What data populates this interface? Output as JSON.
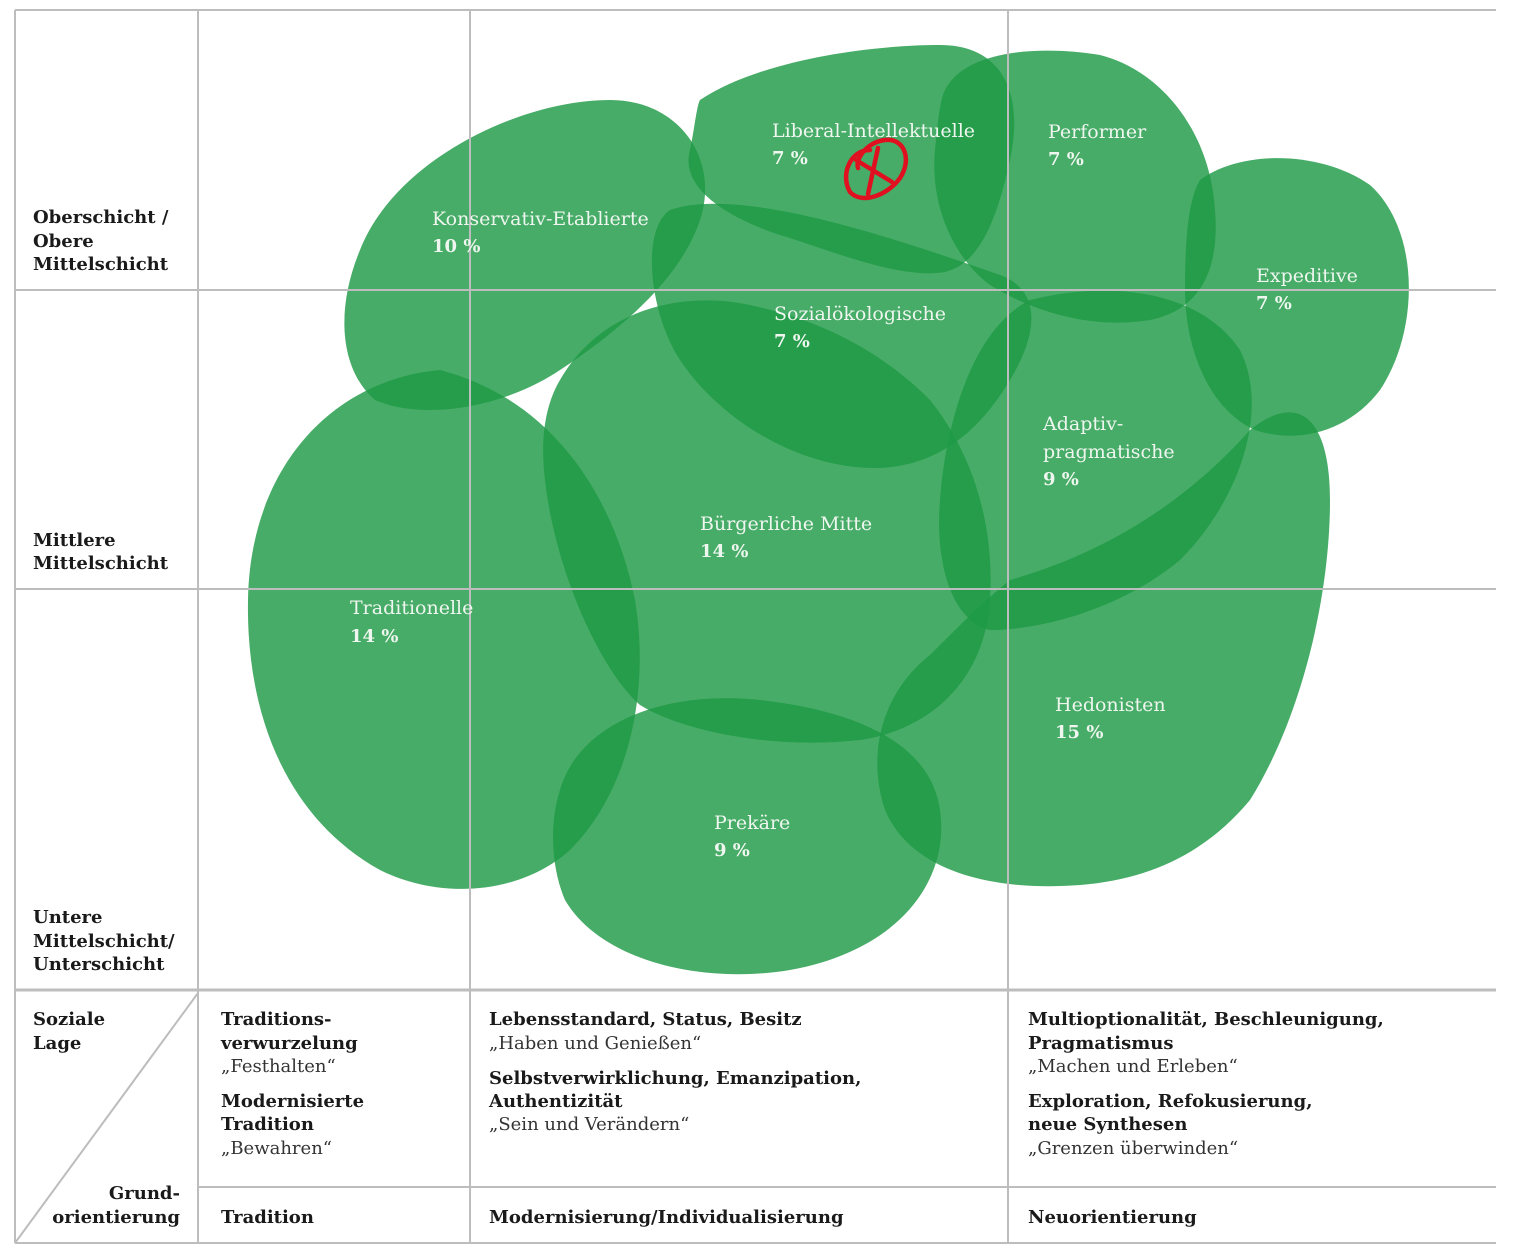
{
  "colors": {
    "blob": "#1e9a45",
    "grid": "#bdbdbd",
    "text_on_green": "#eef6ef",
    "annotation": "#e01020"
  },
  "rows": {
    "upper": [
      "Oberschicht /",
      "Obere",
      "Mittelschicht"
    ],
    "middle": [
      "Mittlere",
      "Mittelschicht"
    ],
    "lower": [
      "Untere",
      "Mittelschicht/",
      "Unterschicht"
    ]
  },
  "milieus": [
    {
      "name": "Liberal-Intellektuelle",
      "share": "7 %"
    },
    {
      "name": "Performer",
      "share": "7 %"
    },
    {
      "name": "Konservativ-Etablierte",
      "share": "10 %"
    },
    {
      "name": "Expeditive",
      "share": "7 %"
    },
    {
      "name": "Sozialökologische",
      "share": "7 %"
    },
    {
      "name": "Adaptiv-",
      "name2": "pragmatische",
      "share": "9 %"
    },
    {
      "name": "Bürgerliche Mitte",
      "share": "14 %"
    },
    {
      "name": "Traditionelle",
      "share": "14 %"
    },
    {
      "name": "Hedonisten",
      "share": "15 %"
    },
    {
      "name": "Prekäre",
      "share": "9 %"
    }
  ],
  "axis": {
    "corner_top": [
      "Soziale",
      "Lage"
    ],
    "corner_bottom": [
      "Grund-",
      "orientierung"
    ],
    "col1": {
      "items": [
        {
          "lines": [
            "Traditions-",
            "verwurzelung"
          ],
          "quote": "„Festhalten“"
        },
        {
          "lines": [
            "Modernisierte",
            "Tradition"
          ],
          "quote": "„Bewahren“"
        }
      ],
      "footer": "Tradition"
    },
    "col2": {
      "items": [
        {
          "lines": [
            "Lebensstandard, Status, Besitz"
          ],
          "quote": "„Haben und Genießen“"
        },
        {
          "lines": [
            "Selbstverwirklichung, Emanzipation,",
            "Authentizität"
          ],
          "quote": "„Sein und Verändern“"
        }
      ],
      "footer": "Modernisierung/Individualisierung"
    },
    "col3": {
      "items": [
        {
          "lines": [
            "Multioptionalität, Beschleunigung,",
            "Pragmatismus"
          ],
          "quote": "„Machen und Erleben“"
        },
        {
          "lines": [
            "Exploration, Refokusierung,",
            "neue Synthesen"
          ],
          "quote": "„Grenzen überwinden“"
        }
      ],
      "footer": "Neuorientierung"
    }
  }
}
